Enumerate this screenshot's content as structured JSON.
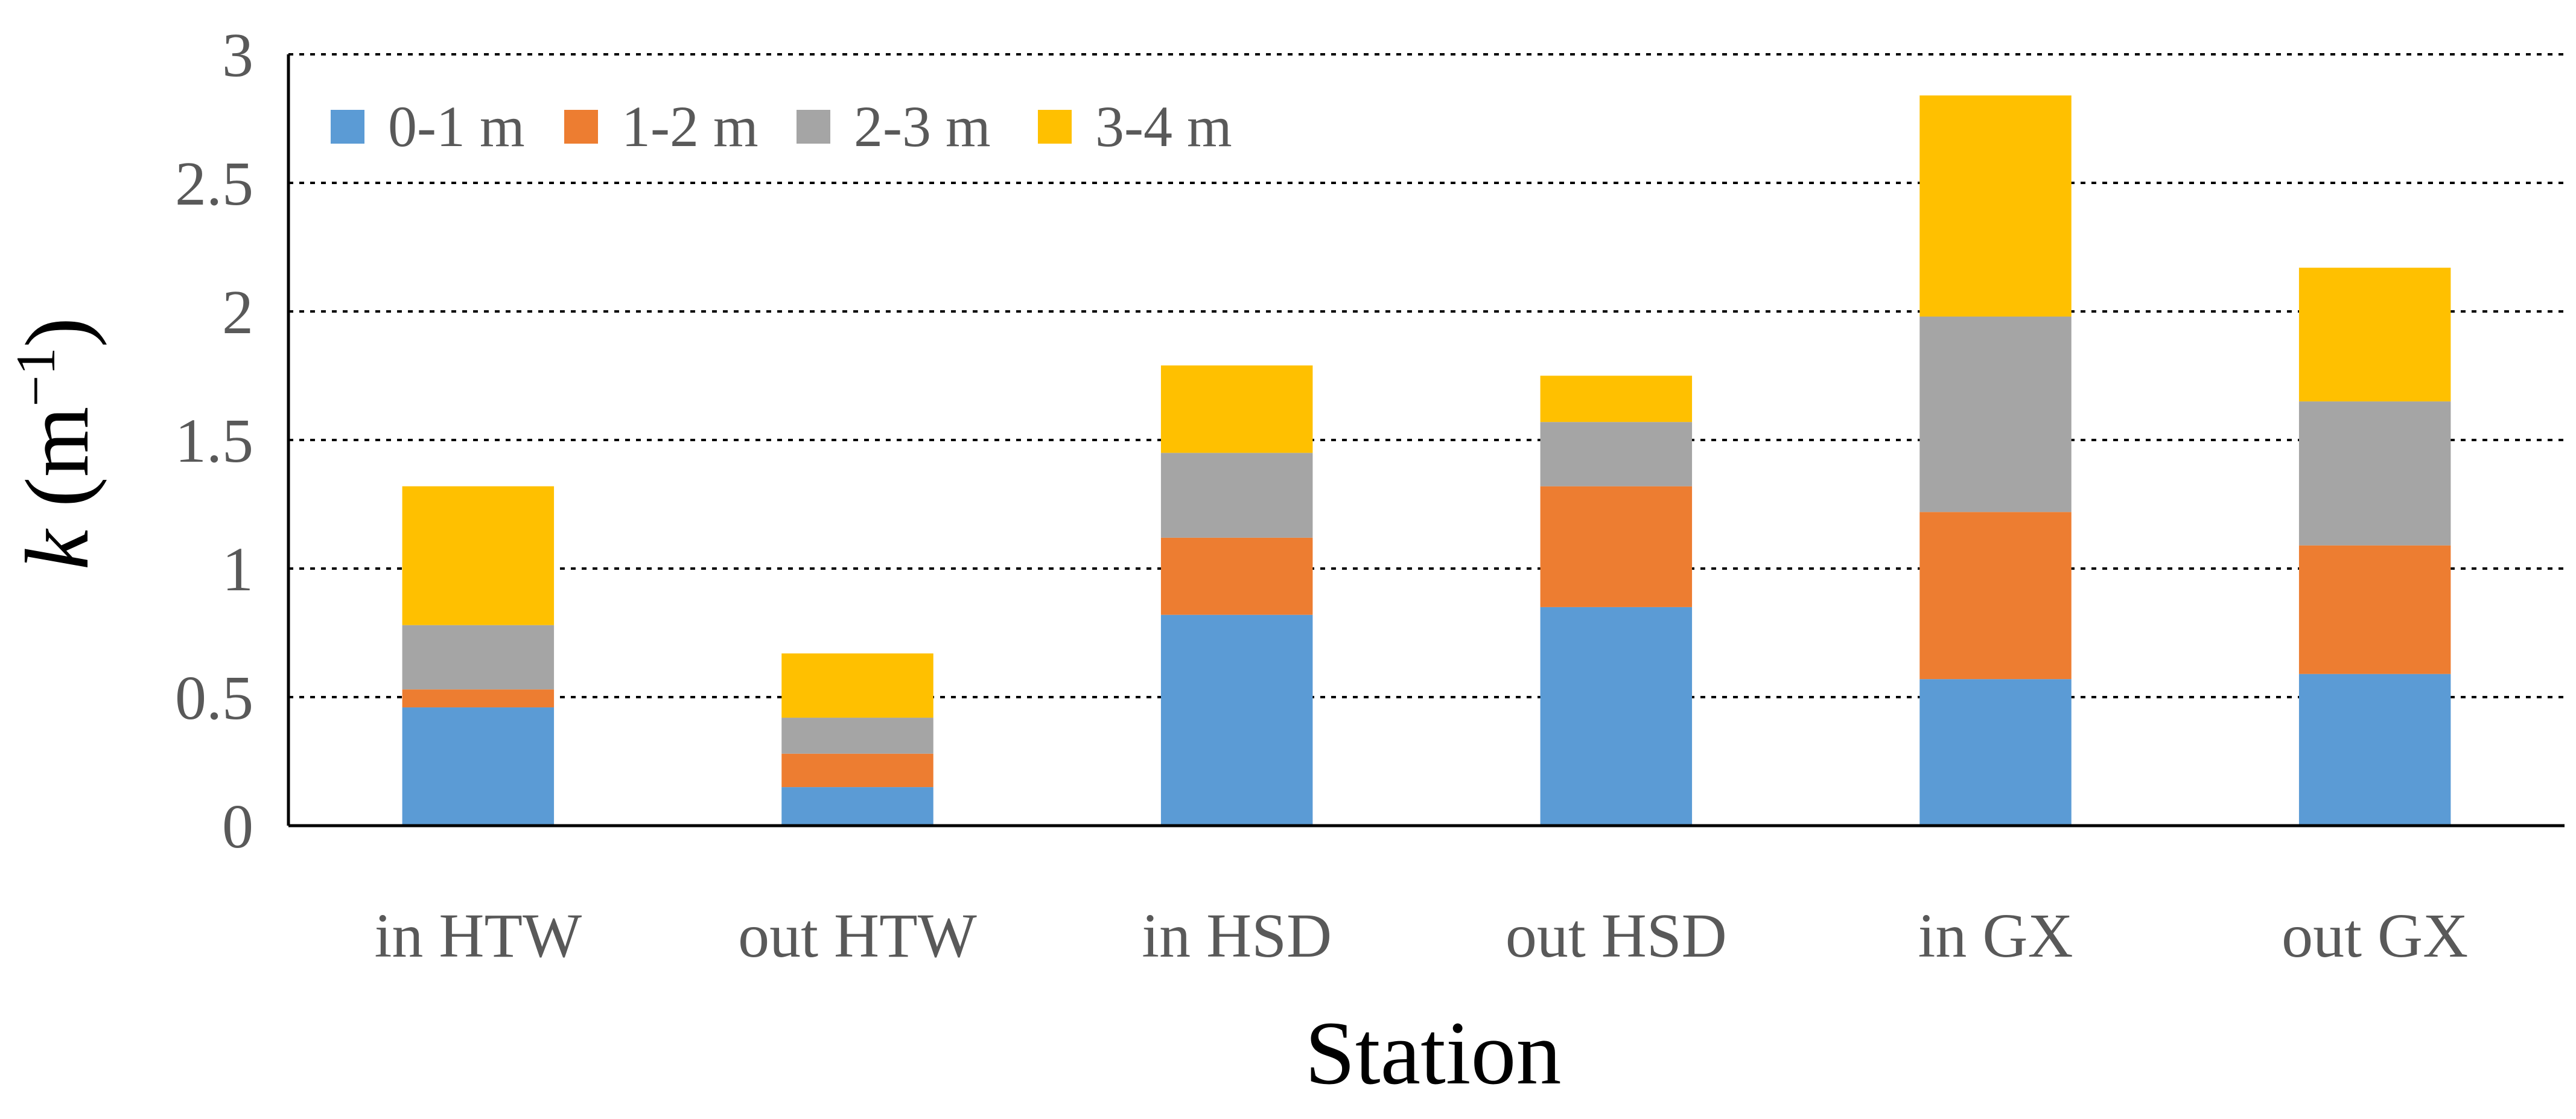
{
  "chart_data": {
    "type": "bar",
    "stacked": true,
    "categories": [
      "in HTW",
      "out HTW",
      "in HSD",
      "out HSD",
      "in GX",
      "out GX"
    ],
    "series": [
      {
        "name": "0-1 m",
        "color": "#5B9BD5",
        "values": [
          0.46,
          0.15,
          0.82,
          0.85,
          0.57,
          0.59
        ]
      },
      {
        "name": "1-2 m",
        "color": "#ED7D31",
        "values": [
          0.07,
          0.13,
          0.3,
          0.47,
          0.65,
          0.5
        ]
      },
      {
        "name": "2-3 m",
        "color": "#A5A5A5",
        "values": [
          0.25,
          0.14,
          0.33,
          0.25,
          0.76,
          0.56
        ]
      },
      {
        "name": "3-4 m",
        "color": "#FFC000",
        "values": [
          0.54,
          0.25,
          0.34,
          0.18,
          0.86,
          0.52
        ]
      }
    ],
    "xlabel": "Station",
    "ylabel_main": "k",
    "ylabel_unit_open": " (m",
    "ylabel_unit_exp": "−1",
    "ylabel_unit_close": ")",
    "ylim": [
      0,
      3
    ],
    "yticks": [
      0,
      0.5,
      1,
      1.5,
      2,
      2.5,
      3
    ],
    "ytick_labels": [
      "0",
      "0.5",
      "1",
      "1.5",
      "2",
      "2.5",
      "3"
    ],
    "grid": true,
    "legend_position": "top-left"
  }
}
